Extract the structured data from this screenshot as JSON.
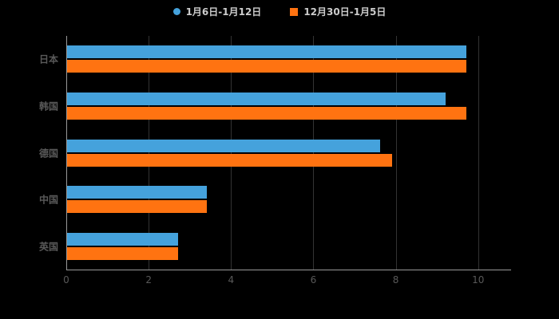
{
  "chart_data": {
    "type": "bar",
    "orientation": "horizontal",
    "title": "",
    "xlabel": "",
    "ylabel": "",
    "categories": [
      "日本",
      "韩国",
      "德国",
      "中国",
      "英国"
    ],
    "series": [
      {
        "name": "1月6日-1月12日",
        "color": "#45a2dc",
        "marker": "circle",
        "values": [
          9.7,
          9.2,
          7.6,
          3.4,
          2.7
        ]
      },
      {
        "name": "12月30日-1月5日",
        "color": "#ff7311",
        "marker": "square",
        "values": [
          9.7,
          9.7,
          7.9,
          3.4,
          2.7
        ]
      }
    ],
    "xlim": [
      0,
      10.8
    ],
    "xticks": [
      0,
      2,
      4,
      6,
      8,
      10
    ],
    "grid": true,
    "legend_position": "top",
    "colors": {
      "background": "#000000",
      "axis_line": "#999999",
      "gridline": "#333333",
      "tick_label": "#595959",
      "category_label": "#595959",
      "legend_text": "#cccccc"
    }
  }
}
